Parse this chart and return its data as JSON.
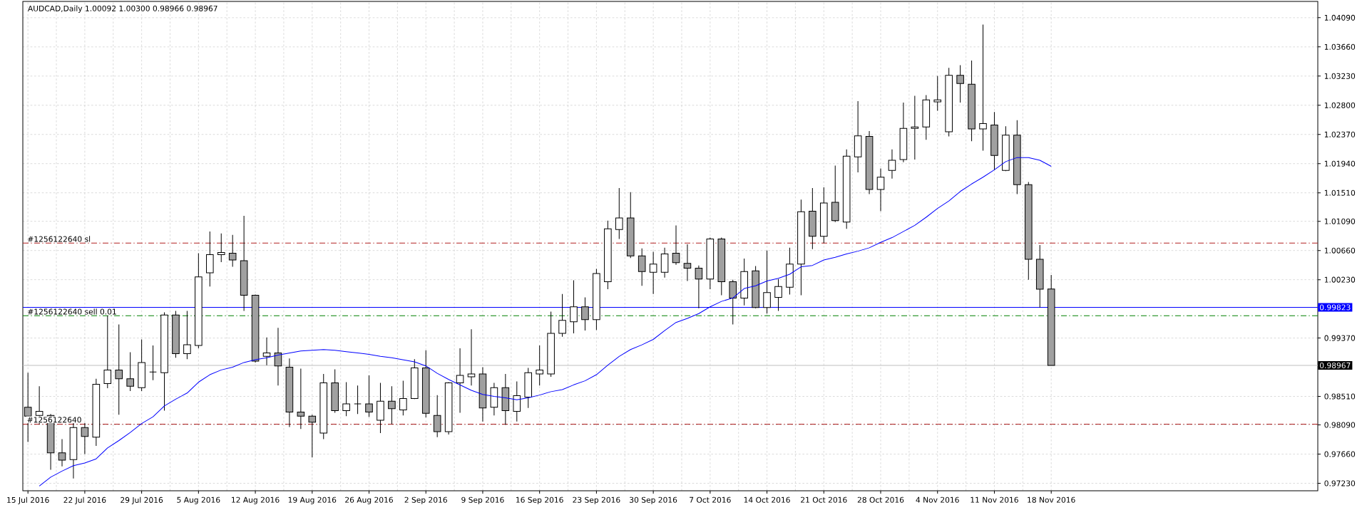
{
  "chart_data": {
    "type": "candlestick",
    "title": "AUDCAD,Daily  1.00092 1.00300 0.98966 0.98967",
    "categories": [
      "15 Jul 2016",
      null,
      null,
      null,
      null,
      "22 Jul 2016",
      null,
      null,
      null,
      null,
      "29 Jul 2016",
      null,
      null,
      null,
      null,
      "5 Aug 2016",
      null,
      null,
      null,
      null,
      "12 Aug 2016",
      null,
      null,
      null,
      null,
      "19 Aug 2016",
      null,
      null,
      null,
      null,
      "26 Aug 2016",
      null,
      null,
      null,
      null,
      "2 Sep 2016",
      null,
      null,
      null,
      null,
      "9 Sep 2016",
      null,
      null,
      null,
      null,
      "16 Sep 2016",
      null,
      null,
      null,
      null,
      "23 Sep 2016",
      null,
      null,
      null,
      null,
      "30 Sep 2016",
      null,
      null,
      null,
      null,
      "7 Oct 2016",
      null,
      null,
      null,
      null,
      "14 Oct 2016",
      null,
      null,
      null,
      null,
      "21 Oct 2016",
      null,
      null,
      null,
      null,
      "28 Oct 2016",
      null,
      null,
      null,
      null,
      "4 Nov 2016",
      null,
      null,
      null,
      null,
      "11 Nov 2016",
      null,
      null,
      null,
      null,
      "18 Nov 2016"
    ],
    "series": [
      {
        "colors": [
          "#a0a0a0",
          "#ffffff",
          "#a0a0a0",
          "#a0a0a0",
          "#ffffff",
          "#a0a0a0",
          "#ffffff",
          "#ffffff",
          "#a0a0a0",
          "#a0a0a0",
          "#ffffff",
          "#000000",
          "#ffffff",
          "#a0a0a0",
          "#ffffff",
          "#ffffff",
          "#ffffff",
          "#ffffff",
          "#a0a0a0",
          "#a0a0a0",
          "#a0a0a0",
          "#ffffff",
          "#a0a0a0",
          "#a0a0a0",
          "#a0a0a0",
          "#a0a0a0",
          "#ffffff",
          "#a0a0a0",
          "#ffffff",
          "#000000",
          "#a0a0a0",
          "#ffffff",
          "#a0a0a0",
          "#ffffff",
          "#ffffff",
          "#a0a0a0",
          "#a0a0a0",
          "#ffffff",
          "#ffffff",
          "#ffffff",
          "#a0a0a0",
          "#ffffff",
          "#a0a0a0",
          "#ffffff",
          "#ffffff",
          "#ffffff",
          "#ffffff",
          "#ffffff",
          "#ffffff",
          "#a0a0a0",
          "#ffffff",
          "#ffffff",
          "#ffffff",
          "#a0a0a0",
          "#a0a0a0",
          "#ffffff",
          "#ffffff",
          "#a0a0a0",
          "#a0a0a0",
          "#a0a0a0",
          "#ffffff",
          "#a0a0a0",
          "#a0a0a0",
          "#ffffff",
          "#a0a0a0",
          "#ffffff",
          "#ffffff",
          "#ffffff",
          "#ffffff",
          "#a0a0a0",
          "#ffffff",
          "#a0a0a0",
          "#ffffff",
          "#ffffff",
          "#a0a0a0",
          "#ffffff",
          "#ffffff",
          "#ffffff",
          "#ffffff",
          "#ffffff",
          "#ffffff",
          "#ffffff",
          "#a0a0a0",
          "#a0a0a0",
          "#ffffff",
          "#a0a0a0",
          "#ffffff",
          "#a0a0a0",
          "#a0a0a0",
          "#a0a0a0",
          "#a0a0a0"
        ],
        "ohlc": [
          [
            0.9835,
            0.9886,
            0.9784,
            0.9822
          ],
          [
            0.9823,
            0.9866,
            0.981,
            0.9829
          ],
          [
            0.9823,
            0.9825,
            0.9743,
            0.9768
          ],
          [
            0.9768,
            0.9788,
            0.9748,
            0.9757
          ],
          [
            0.9758,
            0.9812,
            0.973,
            0.9805
          ],
          [
            0.9805,
            0.9812,
            0.9766,
            0.9792
          ],
          [
            0.9791,
            0.9877,
            0.9778,
            0.9869
          ],
          [
            0.987,
            0.997,
            0.9863,
            0.989
          ],
          [
            0.989,
            0.9957,
            0.9824,
            0.9877
          ],
          [
            0.9877,
            0.9916,
            0.9859,
            0.9866
          ],
          [
            0.9864,
            0.9935,
            0.9859,
            0.9901
          ],
          [
            0.9887,
            0.9926,
            0.9875,
            0.9887
          ],
          [
            0.9886,
            0.9975,
            0.983,
            0.9971
          ],
          [
            0.9971,
            0.9977,
            0.9908,
            0.9914
          ],
          [
            0.9914,
            0.9977,
            0.9906,
            0.9927
          ],
          [
            0.9926,
            1.0062,
            0.9922,
            1.0027
          ],
          [
            1.0033,
            1.0094,
            1.0013,
            1.006
          ],
          [
            1.006,
            1.0091,
            1.0049,
            1.0063
          ],
          [
            1.0062,
            1.0089,
            1.0042,
            1.0052
          ],
          [
            1.0051,
            1.0117,
            0.9977,
            1.0
          ],
          [
            1.0,
            1.0001,
            0.9901,
            0.9903
          ],
          [
            0.991,
            0.9938,
            0.9897,
            0.9915
          ],
          [
            0.9915,
            0.9952,
            0.9867,
            0.9896
          ],
          [
            0.9894,
            0.9907,
            0.9806,
            0.9828
          ],
          [
            0.9828,
            0.9892,
            0.9803,
            0.9822
          ],
          [
            0.9822,
            0.9824,
            0.9761,
            0.9813
          ],
          [
            0.9797,
            0.9884,
            0.9788,
            0.9871
          ],
          [
            0.9871,
            0.9891,
            0.9827,
            0.983
          ],
          [
            0.983,
            0.9872,
            0.9822,
            0.984
          ],
          [
            0.984,
            0.9867,
            0.9825,
            0.984
          ],
          [
            0.984,
            0.9882,
            0.9821,
            0.9828
          ],
          [
            0.9816,
            0.9871,
            0.9797,
            0.9844
          ],
          [
            0.9844,
            0.9866,
            0.981,
            0.9833
          ],
          [
            0.9831,
            0.9874,
            0.9823,
            0.9848
          ],
          [
            0.9848,
            0.9906,
            0.9847,
            0.9893
          ],
          [
            0.9893,
            0.9919,
            0.982,
            0.9826
          ],
          [
            0.9823,
            0.9853,
            0.9791,
            0.9799
          ],
          [
            0.9799,
            0.9872,
            0.9795,
            0.9871
          ],
          [
            0.9871,
            0.9922,
            0.9827,
            0.9882
          ],
          [
            0.988,
            0.995,
            0.9867,
            0.9884
          ],
          [
            0.9884,
            0.9894,
            0.9814,
            0.9834
          ],
          [
            0.9835,
            0.9871,
            0.9823,
            0.9864
          ],
          [
            0.9864,
            0.9884,
            0.9809,
            0.983
          ],
          [
            0.9829,
            0.9873,
            0.9814,
            0.9852
          ],
          [
            0.985,
            0.9893,
            0.9834,
            0.9886
          ],
          [
            0.9884,
            0.9926,
            0.9867,
            0.989
          ],
          [
            0.9884,
            0.9976,
            0.988,
            0.9944
          ],
          [
            0.9944,
            1.0002,
            0.9939,
            0.9963
          ],
          [
            0.9961,
            1.0022,
            0.9944,
            0.9983
          ],
          [
            0.9983,
            0.9997,
            0.9948,
            0.9964
          ],
          [
            0.9964,
            1.0039,
            0.9949,
            1.0032
          ],
          [
            1.002,
            1.011,
            1.0009,
            1.0098
          ],
          [
            1.0097,
            1.0158,
            1.0083,
            1.0114
          ],
          [
            1.0114,
            1.0152,
            1.0055,
            1.0058
          ],
          [
            1.0058,
            1.0069,
            1.0014,
            1.0035
          ],
          [
            1.0034,
            1.0064,
            1.0002,
            1.0046
          ],
          [
            1.0034,
            1.007,
            1.0026,
            1.0061
          ],
          [
            1.0062,
            1.0103,
            1.0045,
            1.0048
          ],
          [
            1.0047,
            1.0075,
            1.0021,
            1.004
          ],
          [
            1.004,
            1.0044,
            0.9981,
            1.0024
          ],
          [
            1.0024,
            1.0085,
            1.0009,
            1.0083
          ],
          [
            1.0083,
            1.0085,
            1.0,
            1.002
          ],
          [
            1.002,
            1.0023,
            0.9957,
            0.9996
          ],
          [
            0.9996,
            1.0054,
            0.9985,
            1.0035
          ],
          [
            1.0036,
            1.0043,
            0.9981,
            0.9982
          ],
          [
            0.9982,
            1.0066,
            0.9973,
            1.0004
          ],
          [
            0.9997,
            1.0024,
            0.9977,
            1.0013
          ],
          [
            1.0012,
            1.007,
            1.0001,
            1.0046
          ],
          [
            1.0046,
            1.0141,
            1.0,
            1.0123
          ],
          [
            1.0124,
            1.0158,
            1.0068,
            1.0087
          ],
          [
            1.0087,
            1.0159,
            1.0077,
            1.0136
          ],
          [
            1.0137,
            1.0191,
            1.0108,
            1.011
          ],
          [
            1.0108,
            1.0215,
            1.0098,
            1.0205
          ],
          [
            1.0204,
            1.0286,
            1.0181,
            1.0235
          ],
          [
            1.0234,
            1.0242,
            1.0149,
            1.0156
          ],
          [
            1.0156,
            1.0187,
            1.0124,
            1.0174
          ],
          [
            1.0184,
            1.0215,
            1.0172,
            1.0199
          ],
          [
            1.02,
            1.0284,
            1.0196,
            1.0246
          ],
          [
            1.0246,
            1.0294,
            1.02,
            1.0248
          ],
          [
            1.0248,
            1.0295,
            1.0229,
            1.0288
          ],
          [
            1.0285,
            1.0323,
            1.0272,
            1.0288
          ],
          [
            1.0241,
            1.0335,
            1.0234,
            1.0324
          ],
          [
            1.0324,
            1.0339,
            1.0284,
            1.0312
          ],
          [
            1.0311,
            1.0346,
            1.0227,
            1.0245
          ],
          [
            1.0245,
            1.0399,
            1.0213,
            1.0253
          ],
          [
            1.0251,
            1.027,
            1.0185,
            1.0206
          ],
          [
            1.0184,
            1.0249,
            1.0183,
            1.0236
          ],
          [
            1.0236,
            1.0258,
            1.0149,
            1.0163
          ],
          [
            1.0163,
            1.0167,
            1.0023,
            1.0053
          ],
          [
            1.0053,
            1.0074,
            0.9982,
            1.0009
          ],
          [
            1.00092,
            1.003,
            0.98966,
            0.98967
          ]
        ]
      },
      {
        "type": "line",
        "color": "#0000ff",
        "values": [
          null,
          0.9719,
          0.9732,
          0.9741,
          0.9749,
          0.9753,
          0.9759,
          0.9775,
          0.9786,
          0.9798,
          0.9811,
          0.9821,
          0.9837,
          0.9847,
          0.9856,
          0.9872,
          0.9883,
          0.989,
          0.9894,
          0.9901,
          0.9905,
          0.9908,
          0.9912,
          0.9915,
          0.9918,
          0.9919,
          0.992,
          0.9919,
          0.9917,
          0.9915,
          0.9913,
          0.991,
          0.9908,
          0.9905,
          0.9902,
          0.9896,
          0.9885,
          0.9876,
          0.9868,
          0.986,
          0.9854,
          0.9851,
          0.9849,
          0.9846,
          0.9849,
          0.9853,
          0.9858,
          0.9861,
          0.9868,
          0.9874,
          0.9883,
          0.9897,
          0.991,
          0.992,
          0.9927,
          0.9935,
          0.9948,
          0.996,
          0.9966,
          0.9973,
          0.9983,
          0.9991,
          0.9996,
          1.001,
          1.0014,
          1.0021,
          1.0025,
          1.0031,
          1.0042,
          1.0044,
          1.0052,
          1.0056,
          1.0061,
          1.0065,
          1.007,
          1.0078,
          1.0085,
          1.0094,
          1.0103,
          1.0115,
          1.0128,
          1.0139,
          1.0153,
          1.0164,
          1.0174,
          1.0185,
          1.0197,
          1.0203,
          1.0203,
          1.0199,
          1.019
        ]
      }
    ],
    "ylim": [
      0.9712,
      1.0433
    ],
    "yticks": [
      {
        "value": 1.0409,
        "label": "1.04090"
      },
      {
        "value": 1.0366,
        "label": "1.03660"
      },
      {
        "value": 1.0323,
        "label": "1.03230"
      },
      {
        "value": 1.028,
        "label": "1.02800"
      },
      {
        "value": 1.0237,
        "label": "1.02370"
      },
      {
        "value": 1.0194,
        "label": "1.01940"
      },
      {
        "value": 1.0151,
        "label": "1.01510"
      },
      {
        "value": 1.0109,
        "label": "1.01090"
      },
      {
        "value": 1.0066,
        "label": "1.00660"
      },
      {
        "value": 1.0023,
        "label": "1.00230"
      },
      {
        "value": 0.9937,
        "label": "0.99370"
      },
      {
        "value": 0.9851,
        "label": "0.98510"
      },
      {
        "value": 0.9809,
        "label": "0.98090"
      },
      {
        "value": 0.9766,
        "label": "0.97660"
      },
      {
        "value": 0.9723,
        "label": "0.97230"
      }
    ],
    "ref_lines": [
      {
        "axis": "y",
        "value": 1.0077,
        "label": "#1256122640 sl",
        "color": "#b22222",
        "line_style": "dashed"
      },
      {
        "axis": "y",
        "value": 0.99823,
        "label": "0.99823",
        "color": "#0000ff",
        "line_style": "solid"
      },
      {
        "axis": "y",
        "value": 0.997,
        "label": "#1256122640 sell 0.01",
        "color": "#008000",
        "line_style": "dashed"
      },
      {
        "axis": "y",
        "value": 0.98967,
        "label": "0.98967",
        "color": "#c0c0c0",
        "line_style": "solid"
      },
      {
        "axis": "y",
        "value": 0.981,
        "color": "#b22222",
        "line_style": "dashed"
      }
    ],
    "annotations": [
      {
        "text": "#1256122640",
        "y": 0.981
      }
    ],
    "grid": true
  }
}
